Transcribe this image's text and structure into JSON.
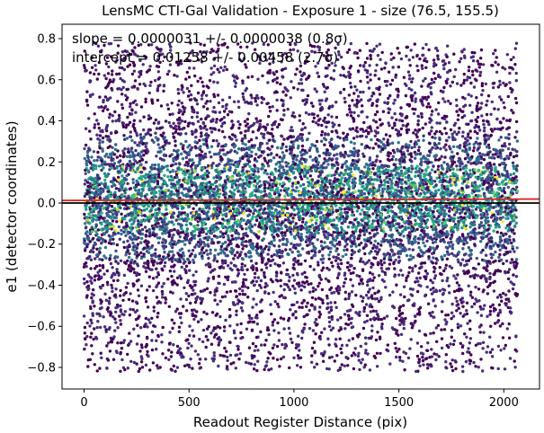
{
  "chart_data": {
    "type": "scatter",
    "title": "LensMC CTI-Gal Validation - Exposure 1 - size (76.5, 155.5)",
    "xlabel": "Readout Register Distance (pix)",
    "ylabel": "e1 (detector coordinates)",
    "xlim": [
      -105,
      2170
    ],
    "ylim": [
      -0.905,
      0.87
    ],
    "xticks": [
      0,
      500,
      1000,
      1500,
      2000
    ],
    "yticks": [
      -0.8,
      -0.6,
      -0.4,
      -0.2,
      0.0,
      0.2,
      0.4,
      0.6,
      0.8
    ],
    "xtick_labels": [
      "0",
      "500",
      "1000",
      "1500",
      "2000"
    ],
    "ytick_labels": [
      "−0.8",
      "−0.6",
      "−0.4",
      "−0.2",
      "0.0",
      "0.2",
      "0.4",
      "0.6",
      "0.8"
    ],
    "annotations": [
      "slope = 0.0000031 +/- 0.0000038 (0.8σ)",
      "intercept = 0.01258 +/- 0.00458 (2.7σ)"
    ],
    "fit_line": {
      "slope": 3.1e-06,
      "intercept": 0.01258,
      "color": "#d62728"
    },
    "zero_line": {
      "y": 0.0,
      "color": "#000000"
    },
    "scatter": {
      "x_range": [
        0,
        2065
      ],
      "y_center": 0.0,
      "y_spread": 0.2,
      "y_extent": [
        -0.82,
        0.78
      ],
      "point_count": 9000,
      "colormap": "viridis",
      "colors": [
        "#440154",
        "#472d7b",
        "#3b528b",
        "#2c728e",
        "#21918c",
        "#28ae80",
        "#5ec962",
        "#addc30",
        "#fde725"
      ]
    },
    "grid": false,
    "legend": "none"
  }
}
